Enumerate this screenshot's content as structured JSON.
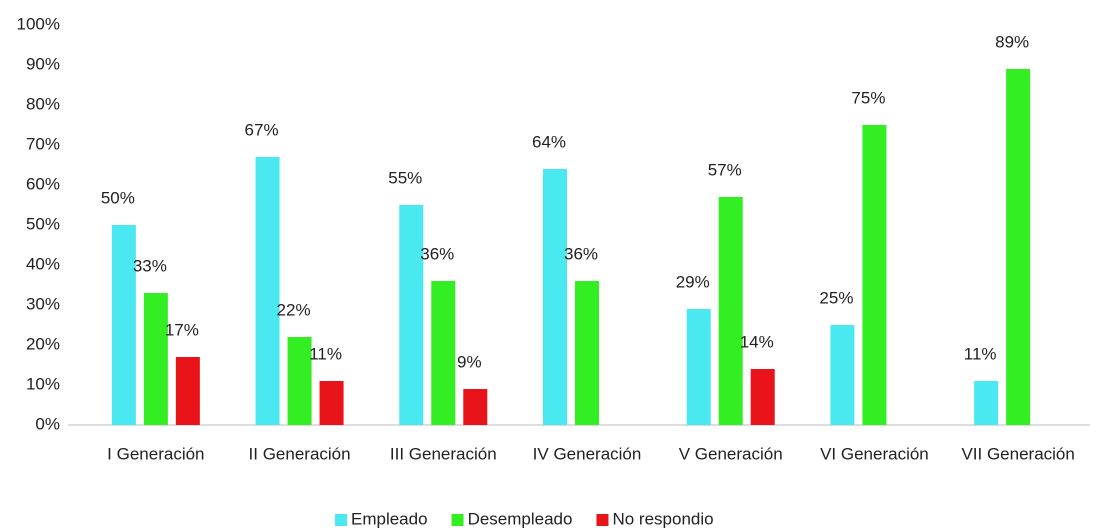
{
  "chart_data": {
    "type": "bar",
    "categories": [
      "I Generación",
      "II Generación",
      "III Generación",
      "IV Generación",
      "V Generación",
      "VI Generación",
      "VII Generación"
    ],
    "series": [
      {
        "name": "Empleado",
        "color": "#4ae8f0",
        "values": [
          50,
          67,
          55,
          64,
          29,
          25,
          11
        ],
        "value_labels": [
          "50%",
          "67%",
          "55%",
          "64%",
          "29%",
          "25%",
          "11%"
        ]
      },
      {
        "name": "Desempleado",
        "color": "#33ee22",
        "values": [
          33,
          22,
          36,
          36,
          57,
          75,
          89
        ],
        "value_labels": [
          "33%",
          "22%",
          "36%",
          "36%",
          "57%",
          "75%",
          "89%"
        ]
      },
      {
        "name": "No respondio",
        "color": "#e8141a",
        "values": [
          17,
          11,
          9,
          null,
          14,
          null,
          null
        ],
        "value_labels": [
          "17%",
          "11%",
          "9%",
          null,
          "14%",
          null,
          null
        ]
      }
    ],
    "ylim": [
      0,
      100
    ],
    "yticks": [
      {
        "value": 0,
        "label": "0%"
      },
      {
        "value": 10,
        "label": "10%"
      },
      {
        "value": 20,
        "label": "20%"
      },
      {
        "value": 30,
        "label": "30%"
      },
      {
        "value": 40,
        "label": "40%"
      },
      {
        "value": 50,
        "label": "50%"
      },
      {
        "value": 60,
        "label": "60%"
      },
      {
        "value": 70,
        "label": "70%"
      },
      {
        "value": 80,
        "label": "80%"
      },
      {
        "value": 90,
        "label": "90%"
      },
      {
        "value": 100,
        "label": "100%"
      }
    ],
    "grid": false,
    "legend": "bottom"
  }
}
